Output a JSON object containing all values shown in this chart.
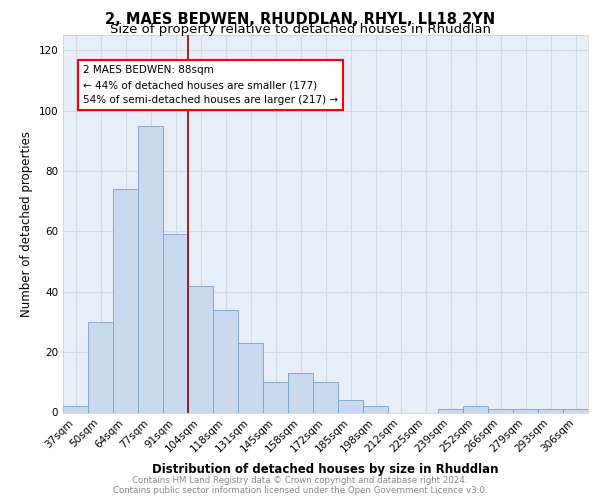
{
  "title": "2, MAES BEDWEN, RHUDDLAN, RHYL, LL18 2YN",
  "subtitle": "Size of property relative to detached houses in Rhuddlan",
  "xlabel": "Distribution of detached houses by size in Rhuddlan",
  "ylabel": "Number of detached properties",
  "categories": [
    "37sqm",
    "50sqm",
    "64sqm",
    "77sqm",
    "91sqm",
    "104sqm",
    "118sqm",
    "131sqm",
    "145sqm",
    "158sqm",
    "172sqm",
    "185sqm",
    "198sqm",
    "212sqm",
    "225sqm",
    "239sqm",
    "252sqm",
    "266sqm",
    "279sqm",
    "293sqm",
    "306sqm"
  ],
  "values": [
    2,
    30,
    74,
    95,
    59,
    42,
    34,
    23,
    10,
    13,
    10,
    4,
    2,
    0,
    0,
    1,
    2,
    1,
    1,
    1,
    1
  ],
  "bar_color": "#c9d9ef",
  "bar_edge_color": "#7aa0c4",
  "annotation_box_text": "2 MAES BEDWEN: 88sqm\n← 44% of detached houses are smaller (177)\n54% of semi-detached houses are larger (217) →",
  "red_line_x": 4.5,
  "ylim": [
    0,
    125
  ],
  "yticks": [
    0,
    20,
    40,
    60,
    80,
    100,
    120
  ],
  "grid_color": "#d0d8e8",
  "background_color": "#e8eef8",
  "footer_line1": "Contains HM Land Registry data © Crown copyright and database right 2024.",
  "footer_line2": "Contains public sector information licensed under the Open Government Licence v3.0.",
  "title_fontsize": 10.5,
  "subtitle_fontsize": 9.5,
  "axis_label_fontsize": 8.5,
  "tick_fontsize": 7.5,
  "annotation_fontsize": 7.5
}
